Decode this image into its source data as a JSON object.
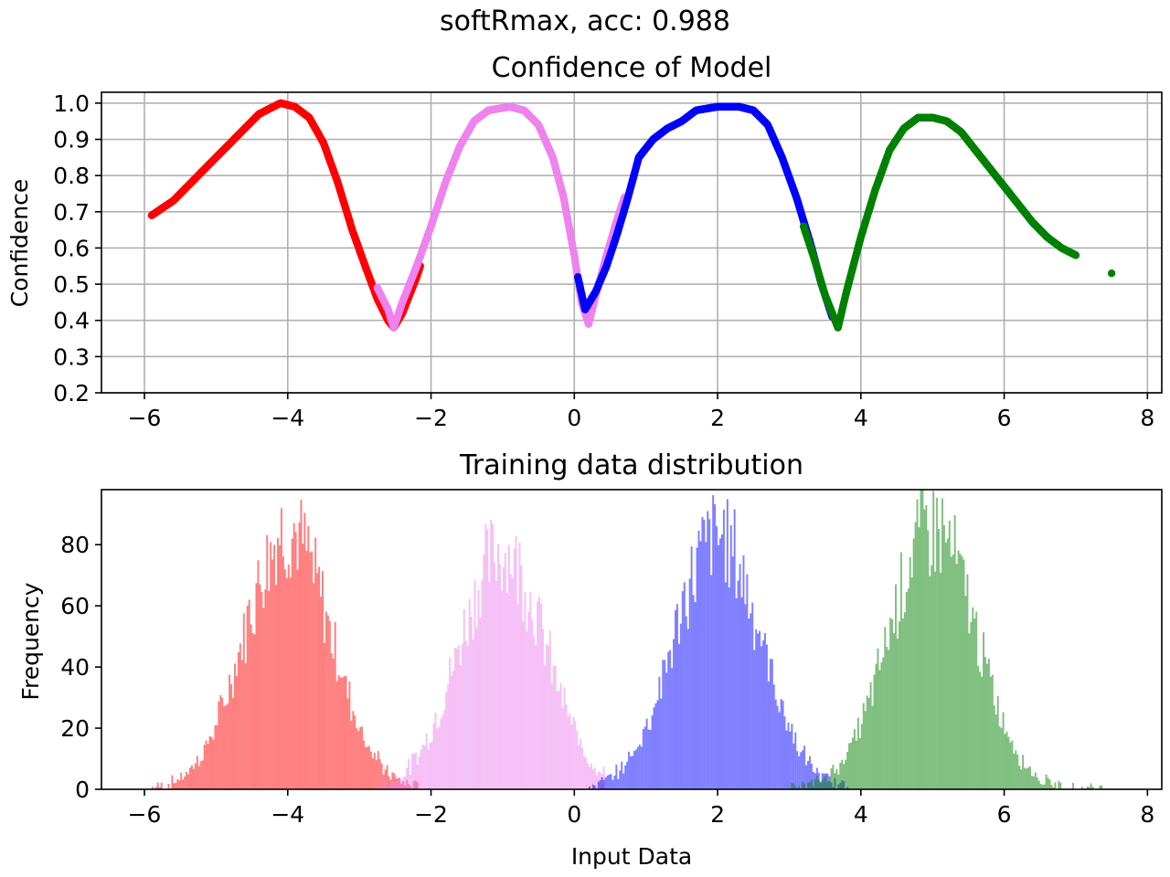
{
  "figure": {
    "suptitle": "softRmax, acc: 0.988"
  },
  "colors": {
    "class0": "#ff0000",
    "class1": "#ee82ee",
    "class2": "#0000ff",
    "class3": "#008000",
    "grid": "#b0b0b0"
  },
  "chart_data": [
    {
      "type": "scatter",
      "title": "Confidence of Model",
      "xlabel": "",
      "ylabel": "Confidence",
      "xlim": [
        -6.6,
        8.2
      ],
      "ylim": [
        0.2,
        1.03
      ],
      "grid": true,
      "xticks": [
        -6,
        -4,
        -2,
        0,
        2,
        4,
        6,
        8
      ],
      "xtick_labels": [
        "−6",
        "−4",
        "−2",
        "0",
        "2",
        "4",
        "6",
        "8"
      ],
      "yticks": [
        0.2,
        0.3,
        0.4,
        0.5,
        0.6,
        0.7,
        0.8,
        0.9,
        1.0
      ],
      "ytick_labels": [
        "0.2",
        "0.3",
        "0.4",
        "0.5",
        "0.6",
        "0.7",
        "0.8",
        "0.9",
        "1.0"
      ],
      "series": [
        {
          "color_key": "class0",
          "points": [
            [
              -5.9,
              0.69
            ],
            [
              -5.6,
              0.73
            ],
            [
              -5.3,
              0.79
            ],
            [
              -5.0,
              0.85
            ],
            [
              -4.7,
              0.91
            ],
            [
              -4.4,
              0.97
            ],
            [
              -4.1,
              1.0
            ],
            [
              -3.9,
              0.99
            ],
            [
              -3.7,
              0.96
            ],
            [
              -3.5,
              0.89
            ],
            [
              -3.3,
              0.78
            ],
            [
              -3.1,
              0.65
            ],
            [
              -2.9,
              0.54
            ],
            [
              -2.75,
              0.46
            ],
            [
              -2.6,
              0.4
            ],
            [
              -2.52,
              0.38
            ],
            [
              -2.4,
              0.42
            ],
            [
              -2.3,
              0.47
            ],
            [
              -2.2,
              0.52
            ],
            [
              -2.15,
              0.55
            ]
          ]
        },
        {
          "color_key": "class1",
          "points": [
            [
              -2.75,
              0.49
            ],
            [
              -2.6,
              0.43
            ],
            [
              -2.52,
              0.38
            ],
            [
              -2.4,
              0.45
            ],
            [
              -2.2,
              0.55
            ],
            [
              -2.0,
              0.66
            ],
            [
              -1.8,
              0.78
            ],
            [
              -1.6,
              0.88
            ],
            [
              -1.4,
              0.95
            ],
            [
              -1.2,
              0.98
            ],
            [
              -0.9,
              0.99
            ],
            [
              -0.7,
              0.98
            ],
            [
              -0.5,
              0.94
            ],
            [
              -0.3,
              0.85
            ],
            [
              -0.15,
              0.74
            ],
            [
              0.0,
              0.58
            ],
            [
              0.1,
              0.45
            ],
            [
              0.2,
              0.39
            ],
            [
              0.3,
              0.47
            ],
            [
              0.45,
              0.58
            ],
            [
              0.6,
              0.68
            ],
            [
              0.7,
              0.74
            ]
          ]
        },
        {
          "color_key": "class2",
          "points": [
            [
              0.05,
              0.52
            ],
            [
              0.15,
              0.43
            ],
            [
              0.3,
              0.48
            ],
            [
              0.45,
              0.55
            ],
            [
              0.6,
              0.64
            ],
            [
              0.75,
              0.74
            ],
            [
              0.9,
              0.85
            ],
            [
              1.1,
              0.9
            ],
            [
              1.3,
              0.93
            ],
            [
              1.5,
              0.95
            ],
            [
              1.7,
              0.98
            ],
            [
              2.0,
              0.99
            ],
            [
              2.3,
              0.99
            ],
            [
              2.5,
              0.98
            ],
            [
              2.7,
              0.94
            ],
            [
              2.9,
              0.85
            ],
            [
              3.1,
              0.74
            ],
            [
              3.3,
              0.61
            ],
            [
              3.45,
              0.5
            ],
            [
              3.6,
              0.41
            ],
            [
              3.7,
              0.4
            ]
          ]
        },
        {
          "color_key": "class3",
          "points": [
            [
              3.2,
              0.66
            ],
            [
              3.35,
              0.57
            ],
            [
              3.5,
              0.47
            ],
            [
              3.6,
              0.42
            ],
            [
              3.68,
              0.38
            ],
            [
              3.8,
              0.48
            ],
            [
              4.0,
              0.63
            ],
            [
              4.2,
              0.76
            ],
            [
              4.4,
              0.87
            ],
            [
              4.6,
              0.93
            ],
            [
              4.8,
              0.96
            ],
            [
              5.0,
              0.96
            ],
            [
              5.2,
              0.95
            ],
            [
              5.4,
              0.92
            ],
            [
              5.6,
              0.87
            ],
            [
              5.8,
              0.82
            ],
            [
              6.0,
              0.77
            ],
            [
              6.2,
              0.72
            ],
            [
              6.4,
              0.67
            ],
            [
              6.6,
              0.63
            ],
            [
              6.8,
              0.6
            ],
            [
              7.0,
              0.58
            ],
            [
              7.5,
              0.53
            ]
          ]
        }
      ]
    },
    {
      "type": "histogram",
      "title": "Training data distribution",
      "xlabel": "Input Data",
      "ylabel": "Frequency",
      "xlim": [
        -6.6,
        8.2
      ],
      "ylim": [
        0,
        98
      ],
      "grid": false,
      "xticks": [
        -6,
        -4,
        -2,
        0,
        2,
        4,
        6,
        8
      ],
      "xtick_labels": [
        "−6",
        "−4",
        "−2",
        "0",
        "2",
        "4",
        "6",
        "8"
      ],
      "yticks": [
        0,
        20,
        40,
        60,
        80
      ],
      "ytick_labels": [
        "0",
        "20",
        "40",
        "60",
        "80"
      ],
      "alpha": 0.5,
      "bin_width": 0.025,
      "series": [
        {
          "color_key": "class0",
          "center": -4.0,
          "sd": 0.6,
          "peak": 85,
          "range": [
            -5.9,
            -2.1
          ]
        },
        {
          "color_key": "class1",
          "center": -1.0,
          "sd": 0.6,
          "peak": 78,
          "range": [
            -2.7,
            0.4
          ]
        },
        {
          "color_key": "class2",
          "center": 2.0,
          "sd": 0.6,
          "peak": 83,
          "range": [
            0.2,
            3.9
          ]
        },
        {
          "color_key": "class3",
          "center": 5.0,
          "sd": 0.6,
          "peak": 86,
          "range": [
            3.0,
            7.5
          ]
        }
      ]
    }
  ]
}
